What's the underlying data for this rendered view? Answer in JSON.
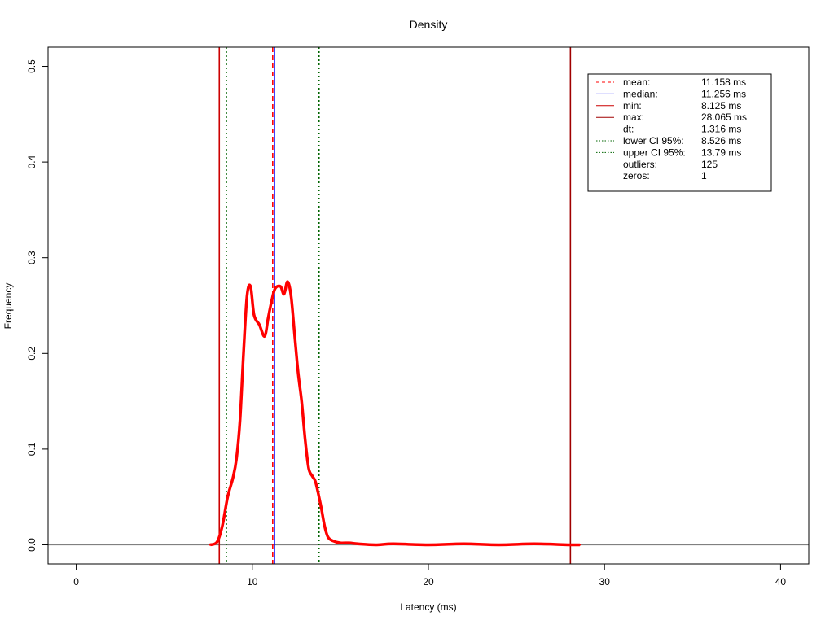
{
  "chart_data": {
    "type": "line",
    "title": "Density",
    "xlabel": "Latency (ms)",
    "ylabel": "Frequency",
    "xlim": [
      -1.6,
      41.6
    ],
    "ylim": [
      -0.02,
      0.52
    ],
    "x_ticks": [
      0,
      10,
      20,
      30,
      40
    ],
    "x_tick_labels": [
      "0",
      "10",
      "20",
      "30",
      "40"
    ],
    "y_ticks": [
      0.0,
      0.1,
      0.2,
      0.3,
      0.4,
      0.5
    ],
    "y_tick_labels": [
      "0.0",
      "0.1",
      "0.2",
      "0.3",
      "0.4",
      "0.5"
    ],
    "grid": false,
    "legend_position": "top-right",
    "density_color": "#ff0000",
    "series": [
      {
        "x": [
          7.6,
          8.0,
          8.3,
          8.6,
          8.9,
          9.1,
          9.3,
          9.5,
          9.7,
          9.9,
          10.1,
          10.4,
          10.7,
          10.9,
          11.1,
          11.3,
          11.6,
          11.8,
          12.0,
          12.2,
          12.4,
          12.6,
          12.8,
          13.0,
          13.2,
          13.4,
          13.6,
          13.9,
          14.1,
          14.3,
          14.6,
          15.0,
          15.5,
          16.0,
          17.0,
          18.0,
          20.0,
          22.0,
          24.0,
          26.0,
          28.0,
          28.6
        ],
        "y": [
          0.0,
          0.003,
          0.02,
          0.05,
          0.07,
          0.09,
          0.13,
          0.2,
          0.26,
          0.27,
          0.24,
          0.23,
          0.218,
          0.237,
          0.255,
          0.268,
          0.27,
          0.262,
          0.275,
          0.26,
          0.22,
          0.18,
          0.15,
          0.11,
          0.08,
          0.072,
          0.065,
          0.04,
          0.02,
          0.008,
          0.004,
          0.002,
          0.002,
          0.001,
          0.0,
          0.001,
          0.0,
          0.001,
          0.0,
          0.001,
          0.0,
          0.0
        ]
      }
    ],
    "vlines": [
      {
        "x": 11.158,
        "color": "#ff0000",
        "style": "dashed"
      },
      {
        "x": 11.256,
        "color": "#0000ff",
        "style": "solid"
      },
      {
        "x": 8.125,
        "color": "#cc0000",
        "style": "solid"
      },
      {
        "x": 28.065,
        "color": "#a00000",
        "style": "solid"
      },
      {
        "x": 8.526,
        "color": "#006400",
        "style": "dotted"
      },
      {
        "x": 13.79,
        "color": "#006400",
        "style": "dotted"
      }
    ],
    "hline": {
      "y": 0,
      "color": "#808080"
    },
    "legend": [
      {
        "label": "mean:",
        "value": "11.158 ms",
        "color": "#ff0000",
        "style": "dashed"
      },
      {
        "label": "median:",
        "value": "11.256 ms",
        "color": "#0000ff",
        "style": "solid"
      },
      {
        "label": "min:",
        "value": "8.125 ms",
        "color": "#cc0000",
        "style": "solid"
      },
      {
        "label": "max:",
        "value": "28.065 ms",
        "color": "#a00000",
        "style": "solid"
      },
      {
        "label": "dt:",
        "value": "1.316 ms",
        "color": "",
        "style": "none"
      },
      {
        "label": "lower CI 95%:",
        "value": "8.526 ms",
        "color": "#006400",
        "style": "dotted"
      },
      {
        "label": "upper CI 95%:",
        "value": "13.79 ms",
        "color": "#006400",
        "style": "dotted"
      },
      {
        "label": "outliers:",
        "value": "125",
        "color": "",
        "style": "none"
      },
      {
        "label": "zeros:",
        "value": "1",
        "color": "",
        "style": "none"
      }
    ]
  }
}
